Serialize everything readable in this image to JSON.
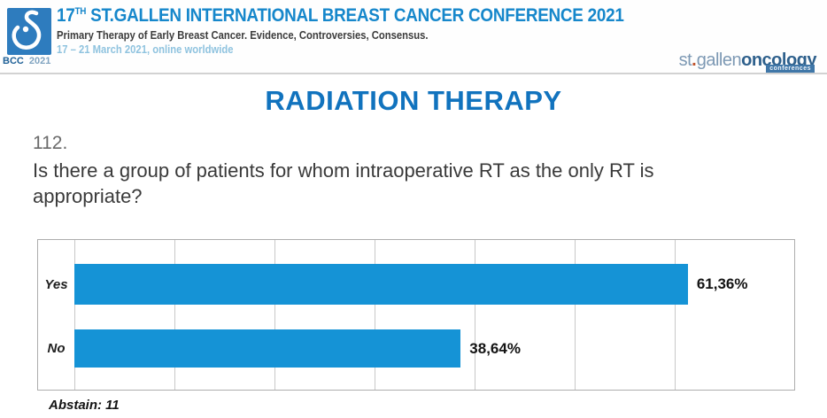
{
  "header": {
    "logo_badge_bold": "BCC",
    "logo_badge_year": "2021",
    "title_prefix": "17",
    "title_sup": "TH",
    "title_rest": " ST.GALLEN INTERNATIONAL BREAST CANCER CONFERENCE 2021",
    "subtitle": "Primary Therapy of Early Breast Cancer. Evidence, Controversies, Consensus.",
    "date_line": "17 – 21 March 2021, online worldwide",
    "right_logo": {
      "part_light": "st",
      "dot": ".",
      "part_light2": "gallen",
      "part_dark": "oncology",
      "badge": "conferences"
    },
    "colors": {
      "title_blue": "#1687cb",
      "date_blue": "#8fc3df",
      "logo_square_blue": "#2e7cbe"
    }
  },
  "main": {
    "section_title": "RADIATION THERAPY",
    "question_number": "112.",
    "question_text": "Is there a group of patients for whom intraoperative RT as the only RT is appropriate?",
    "abstain_note": "Abstain: 11"
  },
  "chart_data": {
    "type": "bar",
    "orientation": "horizontal",
    "title": "",
    "xlabel": "",
    "ylabel": "",
    "categories": [
      "Yes",
      "No"
    ],
    "values": [
      61.36,
      38.64
    ],
    "value_labels": [
      "61,36%",
      "38,64%"
    ],
    "xlim": [
      0,
      72
    ],
    "gridline_step": 10,
    "grid": true,
    "legend": false,
    "bar_color": "#1593d6"
  }
}
